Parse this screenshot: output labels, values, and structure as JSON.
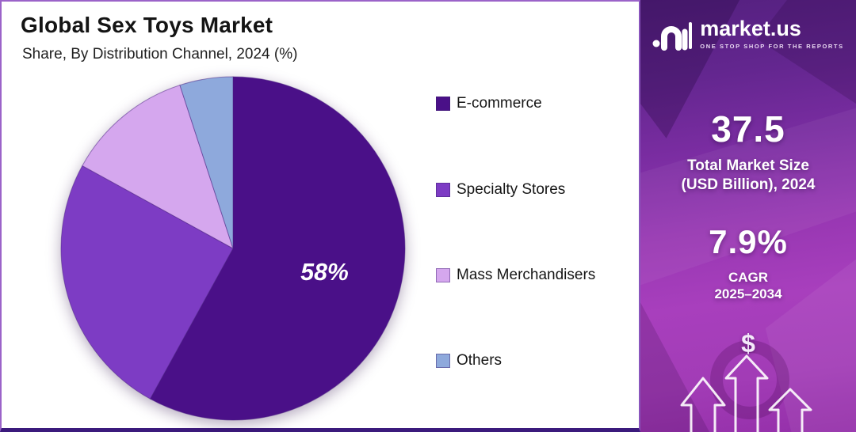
{
  "panel": {
    "title": "Global Sex Toys Market",
    "subtitle": "Share, By Distribution Channel, 2024 (%)"
  },
  "chart_data": {
    "type": "pie",
    "title": "Global Sex Toys Market",
    "subtitle": "Share, By Distribution Channel, 2024 (%)",
    "units": "%",
    "start_angle_deg": 0,
    "direction": "clockwise",
    "legend_position": "right",
    "slices": [
      {
        "label": "E-commerce",
        "value": 58,
        "display_label": "58%",
        "color": "#4a1088"
      },
      {
        "label": "Specialty Stores",
        "value": 25,
        "display_label": "",
        "color": "#7d3cc4"
      },
      {
        "label": "Mass Merchandisers",
        "value": 12,
        "display_label": "",
        "color": "#d5a7ee"
      },
      {
        "label": "Others",
        "value": 5,
        "display_label": "",
        "color": "#8ea9dc"
      }
    ]
  },
  "sidebar": {
    "brand_name": "market.us",
    "brand_tagline": "ONE STOP SHOP FOR THE REPORTS",
    "market_size": {
      "value": "37.5",
      "label1": "Total Market Size",
      "label2": "(USD Billion), 2024"
    },
    "cagr": {
      "value": "7.9%",
      "label1": "CAGR",
      "label2": "2025–2034"
    },
    "dollar_symbol": "$"
  },
  "style": {
    "panel_border": "#9b63c9",
    "panel_bottom_border": "#3b1a7c",
    "sidebar_top": "#54207f",
    "sidebar_mid": "#a83fbd",
    "pie_label_color": "#ffffff"
  }
}
